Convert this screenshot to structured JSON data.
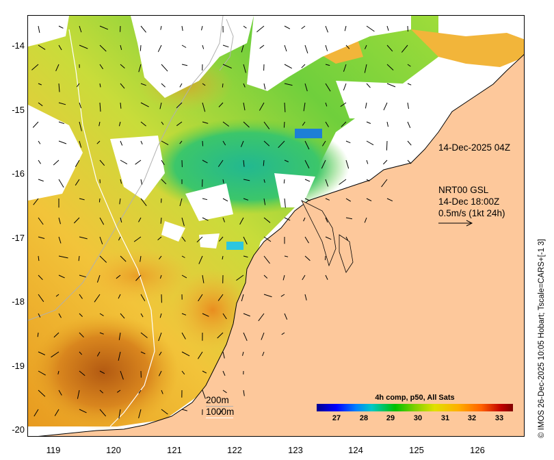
{
  "map": {
    "y_ticks": [
      "-14",
      "-15",
      "-16",
      "-17",
      "-18",
      "-19",
      "-20"
    ],
    "x_ticks": [
      "119",
      "120",
      "121",
      "122",
      "123",
      "124",
      "125",
      "126"
    ],
    "timestamp_label": "14-Dec-2025 04Z",
    "current_label": {
      "line1": "NRT00 GSL",
      "line2": "14-Dec 18:00Z",
      "line3": "0.5m/s (1kt 24h)"
    },
    "scale_200m": "200m",
    "scale_1000m": "1000m",
    "credit": "© IMOS 26-Dec-2025 10:05 Hobart; Tscale=CARS+[-1 3]",
    "colorbar": {
      "title": "4h comp, p50, All Sats",
      "ticks": [
        "27",
        "28",
        "29",
        "30",
        "31",
        "32",
        "33"
      ]
    },
    "colors": {
      "land": "#fdc89b",
      "no_data": "#ffffff",
      "sst_warm": "#f5a623",
      "sst_mid": "#8fd13a",
      "sst_cool": "#1fb5a0"
    }
  }
}
